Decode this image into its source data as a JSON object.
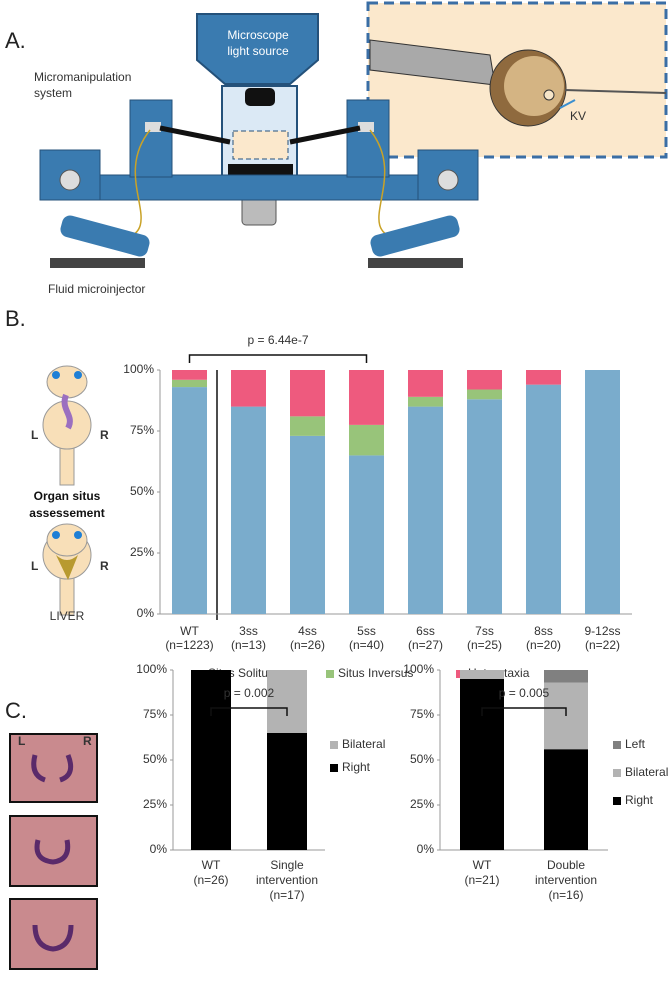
{
  "figure": {
    "panel_a": "A.",
    "panel_b": "B.",
    "panel_c": "C.",
    "light_source": [
      "Microscope",
      "light source"
    ],
    "manipulation": [
      "Micromanipulation",
      "system"
    ],
    "kv": "KV",
    "injector": "Fluid microinjector",
    "left": "L",
    "right": "R",
    "situs": [
      "Organ situs",
      "assessement"
    ],
    "liver": "LIVER"
  },
  "chart_data": [
    {
      "type": "bar",
      "stacked": true,
      "legend": "bottom",
      "categories": [
        [
          "WT",
          "(n=1223)"
        ],
        [
          "3ss",
          "(n=13)"
        ],
        [
          "4ss",
          "(n=26)"
        ],
        [
          "5ss",
          "(n=40)"
        ],
        [
          "6ss",
          "(n=27)"
        ],
        [
          "7ss",
          "(n=25)"
        ],
        [
          "8ss",
          "(n=20)"
        ],
        [
          "9-12ss",
          "(n=22)"
        ]
      ],
      "series": [
        {
          "name": "Situs Solitus",
          "color": "#7aaccc",
          "values": [
            93,
            85,
            73,
            65,
            85,
            88,
            94,
            100
          ]
        },
        {
          "name": "Situs Inversus",
          "color": "#98c47a",
          "values": [
            3,
            0,
            8,
            12.5,
            4,
            4,
            0,
            0
          ]
        },
        {
          "name": "Heterotaxia",
          "color": "#ee5a7e",
          "values": [
            4,
            15,
            19,
            22.5,
            11,
            8,
            6,
            0
          ]
        }
      ],
      "ylim": [
        0,
        100
      ],
      "yticks": [
        {
          "value": 0,
          "label": "0%"
        },
        {
          "value": 25,
          "label": "25%"
        },
        {
          "value": 50,
          "label": "50%"
        },
        {
          "value": 75,
          "label": "75%"
        },
        {
          "value": 100,
          "label": "100%"
        }
      ],
      "annotation": "p = 6.44e-7"
    },
    {
      "type": "bar",
      "stacked": true,
      "legend": "right",
      "categories": [
        [
          "WT",
          "(n=26)"
        ],
        [
          "Single",
          "intervention",
          "(n=17)"
        ]
      ],
      "series": [
        {
          "name": "Right",
          "color": "#000000",
          "values": [
            100,
            65
          ]
        },
        {
          "name": "Bilateral",
          "color": "#b3b3b3",
          "values": [
            0,
            35
          ]
        }
      ],
      "ylim": [
        0,
        100
      ],
      "yticks": [
        {
          "value": 0,
          "label": "0%"
        },
        {
          "value": 25,
          "label": "25%"
        },
        {
          "value": 50,
          "label": "50%"
        },
        {
          "value": 75,
          "label": "75%"
        },
        {
          "value": 100,
          "label": "100%"
        }
      ],
      "annotation": "p = 0.002"
    },
    {
      "type": "bar",
      "stacked": true,
      "legend": "right",
      "categories": [
        [
          "WT",
          "(n=21)"
        ],
        [
          "Double",
          "intervention",
          "(n=16)"
        ]
      ],
      "series": [
        {
          "name": "Right",
          "color": "#000000",
          "values": [
            95,
            56
          ]
        },
        {
          "name": "Bilateral",
          "color": "#b3b3b3",
          "values": [
            5,
            37
          ]
        },
        {
          "name": "Left",
          "color": "#808080",
          "values": [
            0,
            7
          ]
        }
      ],
      "ylim": [
        0,
        100
      ],
      "yticks": [
        {
          "value": 0,
          "label": "0%"
        },
        {
          "value": 25,
          "label": "25%"
        },
        {
          "value": 50,
          "label": "50%"
        },
        {
          "value": 75,
          "label": "75%"
        },
        {
          "value": 100,
          "label": "100%"
        }
      ],
      "annotation": "p = 0.005"
    }
  ]
}
